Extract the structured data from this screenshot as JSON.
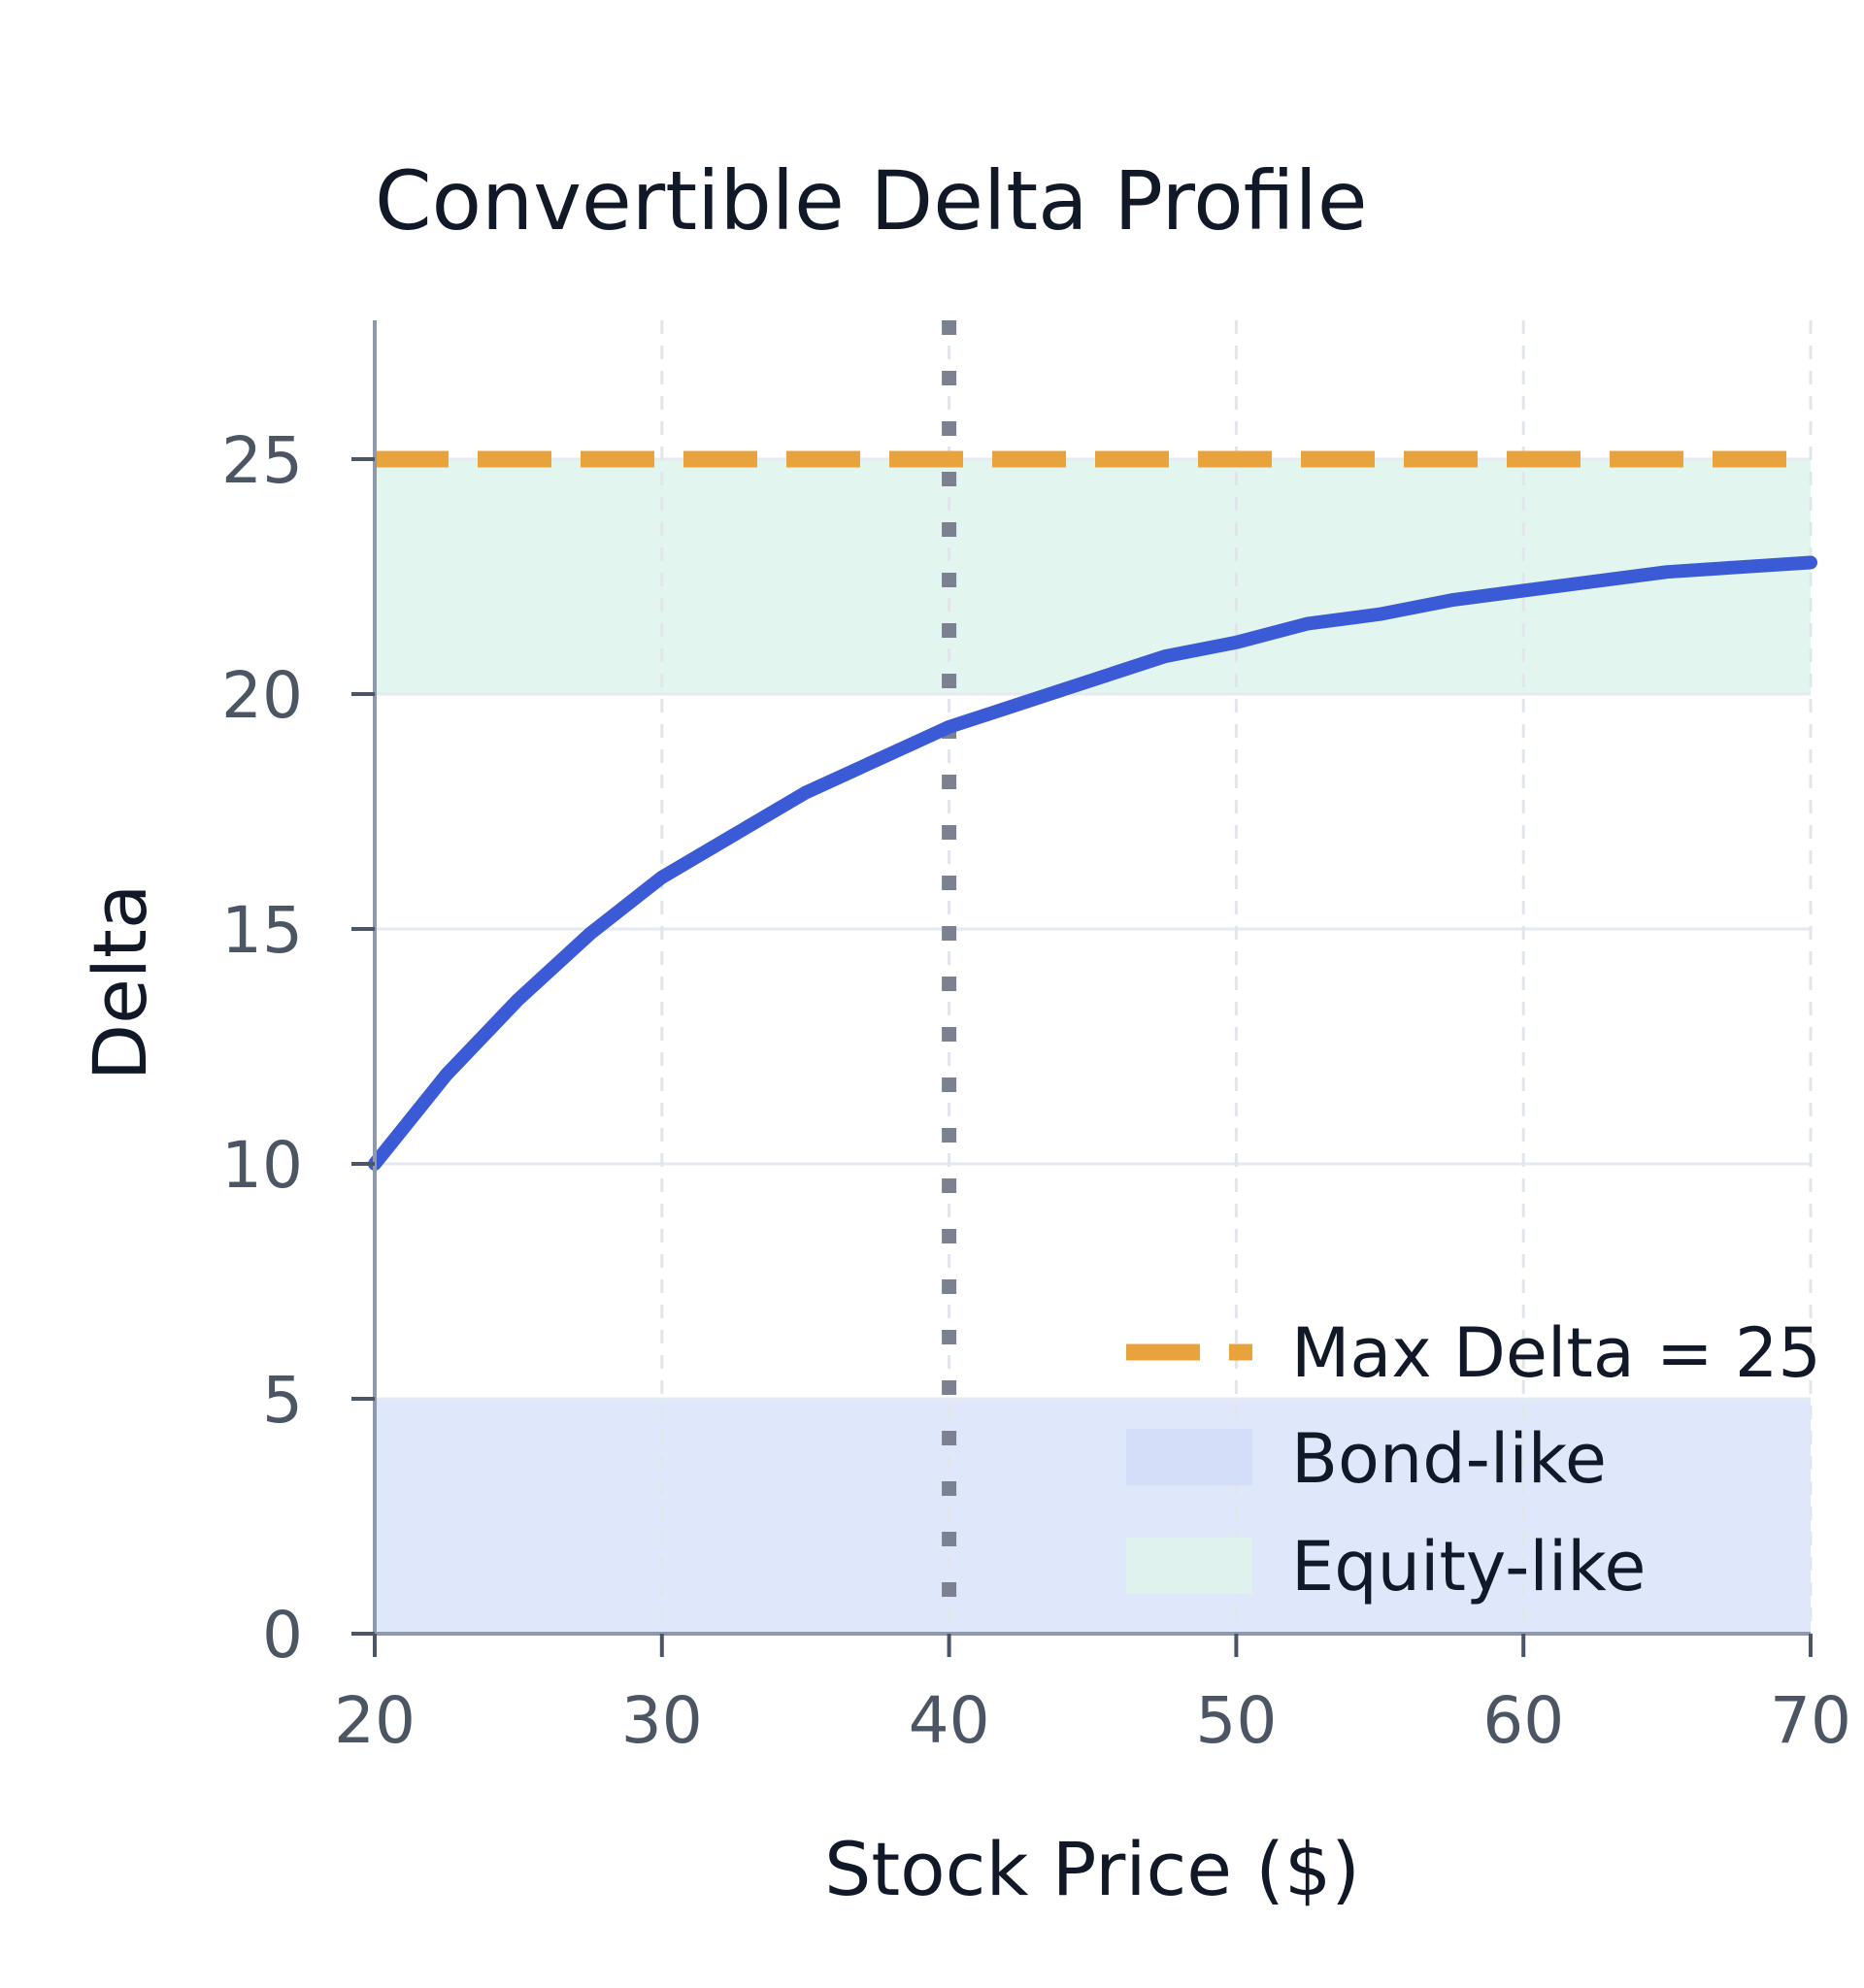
{
  "chart_data": {
    "type": "line",
    "title": "Convertible Delta Profile",
    "xlabel": "Stock Price ($)",
    "ylabel": "Delta",
    "xlim": [
      20,
      70
    ],
    "ylim": [
      0,
      28
    ],
    "x_ticks": [
      20,
      30,
      40,
      50,
      60,
      70
    ],
    "y_ticks": [
      0,
      5,
      10,
      15,
      20,
      25
    ],
    "grid": {
      "horizontal": true,
      "vertical": true,
      "vertical_style": "dashed"
    },
    "legend_position": "lower-right",
    "series": [
      {
        "type": "line",
        "color": "#3b5bd6",
        "x": [
          20,
          22.5,
          25,
          27.5,
          30,
          32.5,
          35,
          37.5,
          40,
          42.5,
          45,
          47.5,
          50,
          52.5,
          55,
          57.5,
          60,
          62.5,
          65,
          67.5,
          70
        ],
        "values": [
          10.0,
          11.9,
          13.5,
          14.9,
          16.1,
          17.0,
          17.9,
          18.6,
          19.3,
          19.8,
          20.3,
          20.8,
          21.1,
          21.5,
          21.7,
          22.0,
          22.2,
          22.4,
          22.6,
          22.7,
          22.8
        ]
      }
    ],
    "reference_lines": [
      {
        "orientation": "horizontal",
        "value": 25,
        "style": "dashed",
        "color": "#e8a33d",
        "label": "Max Delta = 25"
      },
      {
        "orientation": "vertical",
        "value": 40,
        "style": "dotted",
        "color": "#7b8190"
      }
    ],
    "bands": [
      {
        "label": "Bond-like",
        "y_from": 0,
        "y_to": 5,
        "color": "#dfe7fb"
      },
      {
        "label": "Equity-like",
        "y_from": 20,
        "y_to": 25,
        "color": "#e2f5ef"
      }
    ]
  }
}
